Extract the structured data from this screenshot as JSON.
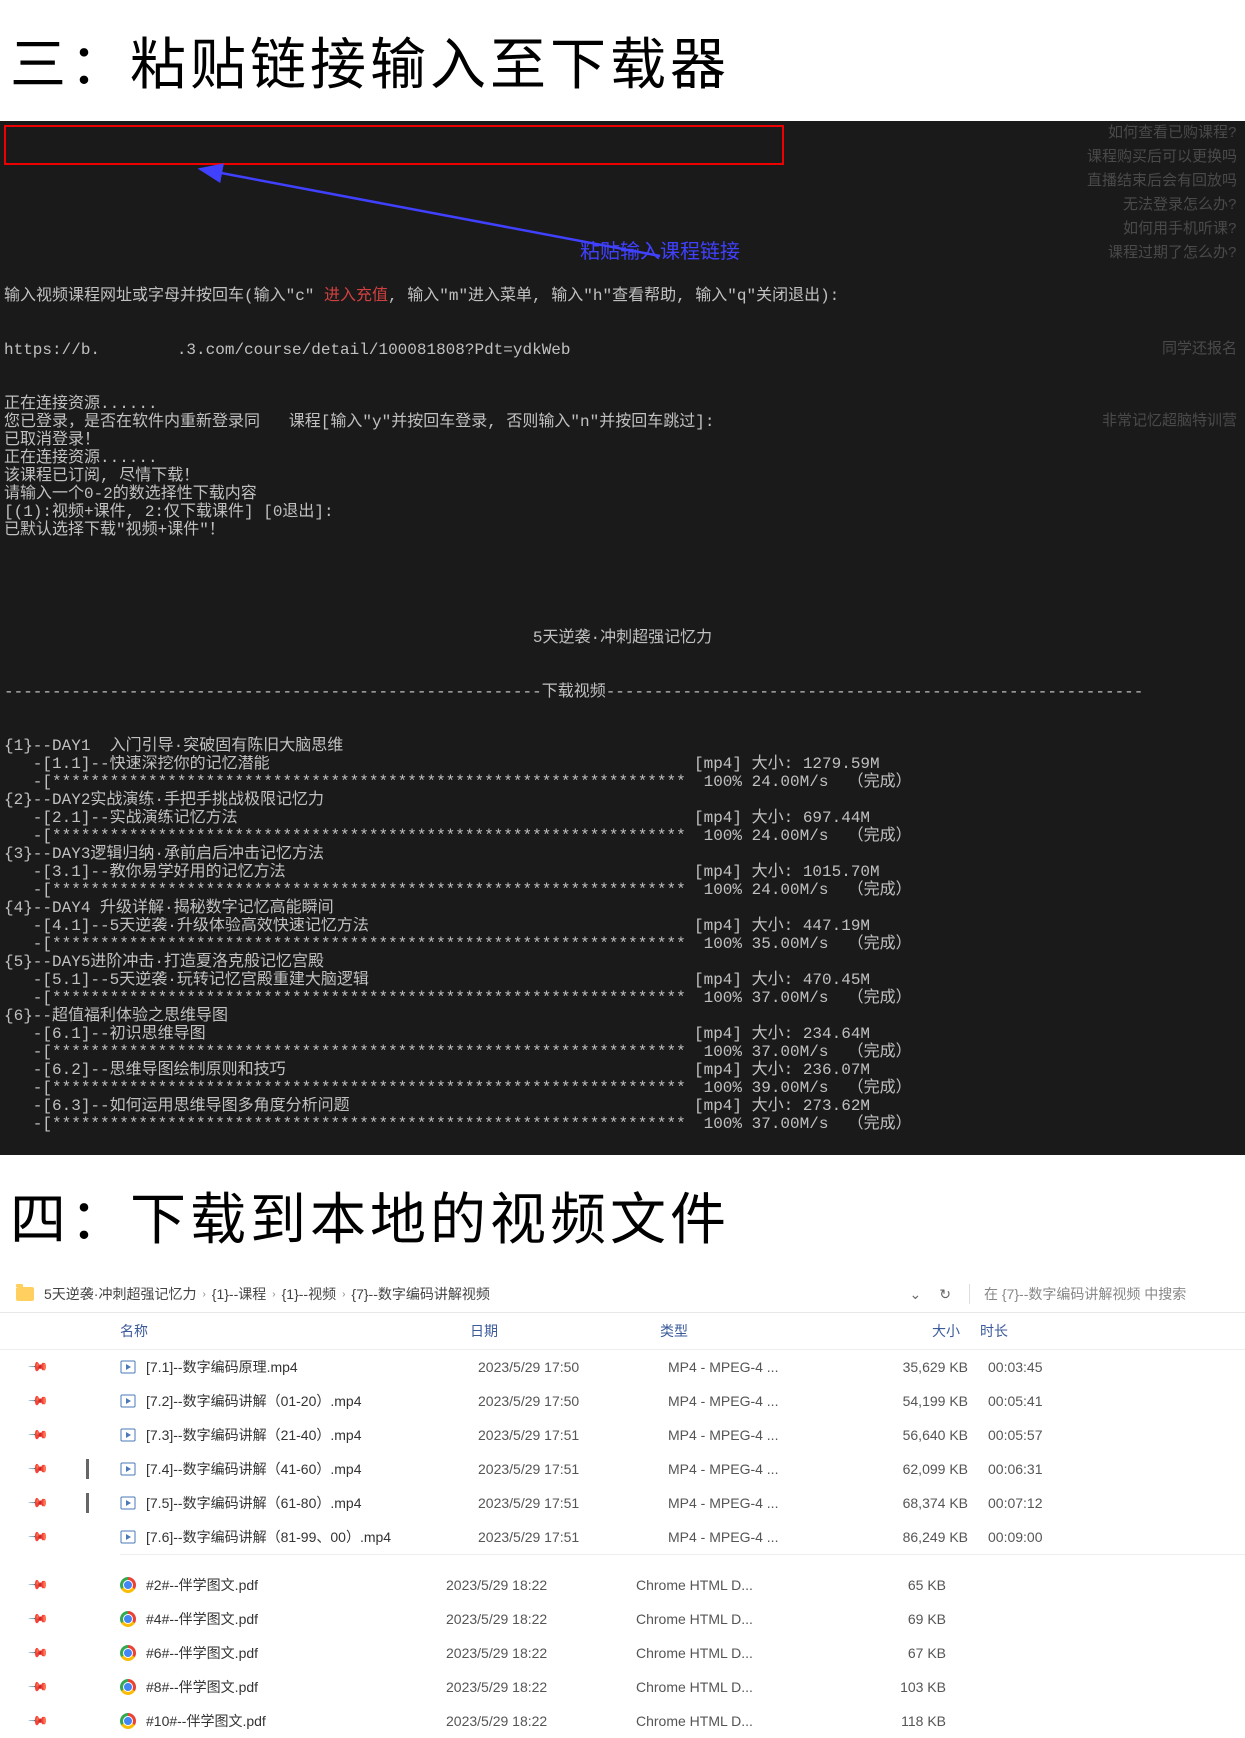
{
  "titles": {
    "step3": "三：粘贴链接输入至下载器",
    "step4": "四：下载到本地的视频文件"
  },
  "terminal": {
    "prompt_line": "输入视频课程网址或字母并按回车(输入\"c\"",
    "prompt_line_red": "进入充值",
    "prompt_line_tail": ", 输入\"m\"进入菜单, 输入\"h\"查看帮助, 输入\"q\"关闭退出):",
    "url": "https://b.        .3.com/course/detail/100081808?Pdt=ydkWeb",
    "lines_after_url": [
      "正在连接资源......",
      "您已登录，是否在软件内重新登录同   课程[输入\"y\"并按回车登录, 否则输入\"n\"并按回车跳过]:",
      "已取消登录！",
      "正在连接资源......",
      "该课程已订阅, 尽情下载！",
      "请输入一个0-2的数选择性下载内容",
      "[(1):视频+课件, 2:仅下载课件] [0退出]:",
      "已默认选择下载\"视频+课件\"！"
    ],
    "annotation": "粘贴输入课程链接",
    "ghost_lines": [
      "如何查看已购课程?",
      "课程购买后可以更换吗",
      "直播结束后会有回放吗",
      "无法登录怎么办?",
      "如何用手机听课?",
      "课程过期了怎么办?",
      "",
      "",
      "",
      "同学还报名",
      "",
      "",
      "非常记忆超脑特训营"
    ],
    "course_title": "5天逆袭·冲刺超强记忆力",
    "section_label": "下载视频",
    "separator_char": "-",
    "star_char": "*",
    "downloads": [
      {
        "idx": "{1}",
        "day": "--DAY1  入门引导·突破固有陈旧大脑思维",
        "items": [
          {
            "sub": "-[1.1]--快速深挖你的记忆潜能",
            "fmt": "[mp4]",
            "size": "大小: 1279.59M",
            "speed": "100% 24.00M/s",
            "status": "（完成）"
          }
        ]
      },
      {
        "idx": "{2}",
        "day": "--DAY2实战演练·手把手挑战极限记忆力",
        "items": [
          {
            "sub": "-[2.1]--实战演练记忆方法",
            "fmt": "[mp4]",
            "size": "大小: 697.44M",
            "speed": "100% 24.00M/s",
            "status": "（完成）"
          }
        ]
      },
      {
        "idx": "{3}",
        "day": "--DAY3逻辑归纳·承前启后冲击记忆方法",
        "items": [
          {
            "sub": "-[3.1]--教你易学好用的记忆方法",
            "fmt": "[mp4]",
            "size": "大小: 1015.70M",
            "speed": "100% 24.00M/s",
            "status": "（完成）"
          }
        ]
      },
      {
        "idx": "{4}",
        "day": "--DAY4 升级详解·揭秘数字记忆高能瞬间",
        "items": [
          {
            "sub": "-[4.1]--5天逆袭·升级体验高效快速记忆方法",
            "fmt": "[mp4]",
            "size": "大小: 447.19M",
            "speed": "100% 35.00M/s",
            "status": "（完成）"
          }
        ]
      },
      {
        "idx": "{5}",
        "day": "--DAY5进阶冲击·打造夏洛克般记忆宫殿",
        "items": [
          {
            "sub": "-[5.1]--5天逆袭·玩转记忆宫殿重建大脑逻辑",
            "fmt": "[mp4]",
            "size": "大小: 470.45M",
            "speed": "100% 37.00M/s",
            "status": "（完成）"
          }
        ]
      },
      {
        "idx": "{6}",
        "day": "--超值福利体验之思维导图",
        "items": [
          {
            "sub": "-[6.1]--初识思维导图",
            "fmt": "[mp4]",
            "size": "大小: 234.64M",
            "speed": "100% 37.00M/s",
            "status": "（完成）"
          },
          {
            "sub": "-[6.2]--思维导图绘制原则和技巧",
            "fmt": "[mp4]",
            "size": "大小: 236.07M",
            "speed": "100% 39.00M/s",
            "status": "（完成）"
          },
          {
            "sub": "-[6.3]--如何运用思维导图多角度分析问题",
            "fmt": "[mp4]",
            "size": "大小: 273.62M",
            "speed": "100% 37.00M/s",
            "status": "（完成）"
          }
        ]
      }
    ]
  },
  "explorer": {
    "breadcrumb": [
      "5天逆袭·冲刺超强记忆力",
      "{1}--课程",
      "{1}--视频",
      "{7}--数字编码讲解视频"
    ],
    "search_placeholder": "在 {7}--数字编码讲解视频 中搜索",
    "columns": {
      "name": "名称",
      "date": "日期",
      "type": "类型",
      "size": "大小",
      "dur": "时长"
    },
    "videos": [
      {
        "name": "[7.1]--数字编码原理.mp4",
        "date": "2023/5/29 17:50",
        "type": "MP4 - MPEG-4 ...",
        "size": "35,629 KB",
        "dur": "00:03:45",
        "pinned": false
      },
      {
        "name": "[7.2]--数字编码讲解（01-20）.mp4",
        "date": "2023/5/29 17:50",
        "type": "MP4 - MPEG-4 ...",
        "size": "54,199 KB",
        "dur": "00:05:41",
        "pinned": false
      },
      {
        "name": "[7.3]--数字编码讲解（21-40）.mp4",
        "date": "2023/5/29 17:51",
        "type": "MP4 - MPEG-4 ...",
        "size": "56,640 KB",
        "dur": "00:05:57",
        "pinned": false
      },
      {
        "name": "[7.4]--数字编码讲解（41-60）.mp4",
        "date": "2023/5/29 17:51",
        "type": "MP4 - MPEG-4 ...",
        "size": "62,099 KB",
        "dur": "00:06:31",
        "pinned": true
      },
      {
        "name": "[7.5]--数字编码讲解（61-80）.mp4",
        "date": "2023/5/29 17:51",
        "type": "MP4 - MPEG-4 ...",
        "size": "68,374 KB",
        "dur": "00:07:12",
        "pinned": true
      },
      {
        "name": "[7.6]--数字编码讲解（81-99、00）.mp4",
        "date": "2023/5/29 17:51",
        "type": "MP4 - MPEG-4 ...",
        "size": "86,249 KB",
        "dur": "00:09:00",
        "pinned": false
      }
    ],
    "pdfs": [
      {
        "name": "#2#--伴学图文.pdf",
        "date": "2023/5/29 18:22",
        "type": "Chrome HTML D...",
        "size": "65 KB"
      },
      {
        "name": "#4#--伴学图文.pdf",
        "date": "2023/5/29 18:22",
        "type": "Chrome HTML D...",
        "size": "69 KB"
      },
      {
        "name": "#6#--伴学图文.pdf",
        "date": "2023/5/29 18:22",
        "type": "Chrome HTML D...",
        "size": "67 KB"
      },
      {
        "name": "#8#--伴学图文.pdf",
        "date": "2023/5/29 18:22",
        "type": "Chrome HTML D...",
        "size": "103 KB"
      },
      {
        "name": "#10#--伴学图文.pdf",
        "date": "2023/5/29 18:22",
        "type": "Chrome HTML D...",
        "size": "118 KB"
      }
    ]
  },
  "colors": {
    "terminal_bg": "#1a1a1a",
    "terminal_fg": "#c0c0c0",
    "highlight_border": "#e00000",
    "annotation_color": "#4040ff",
    "explorer_header_color": "#3a5a9a"
  }
}
